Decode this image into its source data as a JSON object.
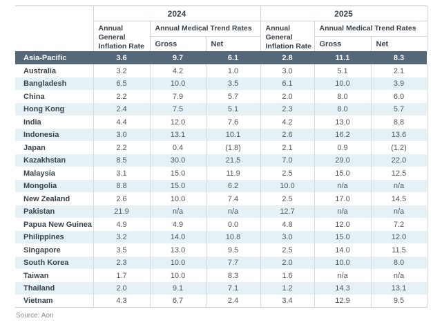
{
  "chart_data": {
    "type": "table",
    "header": {
      "year_2024": "2024",
      "year_2025": "2025",
      "inflation_label": "Annual General Inflation Rate",
      "medical_label": "Annual Medical Trend Rates",
      "gross_label": "Gross",
      "net_label": "Net"
    },
    "summary_row": {
      "name": "Asia-Pacific",
      "values": [
        "3.6",
        "9.7",
        "6.1",
        "2.8",
        "11.1",
        "8.3"
      ]
    },
    "rows": [
      {
        "name": "Australia",
        "values": [
          "3.2",
          "4.2",
          "1.0",
          "3.0",
          "5.1",
          "2.1"
        ]
      },
      {
        "name": "Bangladesh",
        "values": [
          "6.5",
          "10.0",
          "3.5",
          "6.1",
          "10.0",
          "3.9"
        ]
      },
      {
        "name": "China",
        "values": [
          "2.2",
          "7.9",
          "5.7",
          "2.0",
          "8.0",
          "6.0"
        ]
      },
      {
        "name": "Hong Kong",
        "values": [
          "2.4",
          "7.5",
          "5.1",
          "2.3",
          "8.0",
          "5.7"
        ]
      },
      {
        "name": "India",
        "values": [
          "4.4",
          "12.0",
          "7.6",
          "4.2",
          "13.0",
          "8.8"
        ]
      },
      {
        "name": "Indonesia",
        "values": [
          "3.0",
          "13.1",
          "10.1",
          "2.6",
          "16.2",
          "13.6"
        ]
      },
      {
        "name": "Japan",
        "values": [
          "2.2",
          "0.4",
          "(1.8)",
          "2.1",
          "0.9",
          "(1.2)"
        ]
      },
      {
        "name": "Kazakhstan",
        "values": [
          "8.5",
          "30.0",
          "21.5",
          "7.0",
          "29.0",
          "22.0"
        ]
      },
      {
        "name": "Malaysia",
        "values": [
          "3.1",
          "15.0",
          "11.9",
          "2.5",
          "15.0",
          "12.5"
        ]
      },
      {
        "name": "Mongolia",
        "values": [
          "8.8",
          "15.0",
          "6.2",
          "10.0",
          "n/a",
          "n/a"
        ]
      },
      {
        "name": "New Zealand",
        "values": [
          "2.6",
          "10.0",
          "7.4",
          "2.5",
          "17.0",
          "14.5"
        ]
      },
      {
        "name": "Pakistan",
        "values": [
          "21.9",
          "n/a",
          "n/a",
          "12.7",
          "n/a",
          "n/a"
        ]
      },
      {
        "name": "Papua New Guinea",
        "values": [
          "4.9",
          "4.9",
          "0.0",
          "4.8",
          "12.0",
          "7.2"
        ]
      },
      {
        "name": "Philippines",
        "values": [
          "3.2",
          "14.0",
          "10.8",
          "3.0",
          "15.0",
          "12.0"
        ]
      },
      {
        "name": "Singapore",
        "values": [
          "3.5",
          "13.0",
          "9.5",
          "2.5",
          "14.0",
          "11.5"
        ]
      },
      {
        "name": "South Korea",
        "values": [
          "2.3",
          "10.0",
          "7.7",
          "2.0",
          "10.0",
          "8.0"
        ]
      },
      {
        "name": "Taiwan",
        "values": [
          "1.7",
          "10.0",
          "8.3",
          "1.6",
          "n/a",
          "n/a"
        ]
      },
      {
        "name": "Thailand",
        "values": [
          "2.0",
          "9.1",
          "7.1",
          "1.2",
          "14.3",
          "13.1"
        ]
      },
      {
        "name": "Vietnam",
        "values": [
          "4.3",
          "6.7",
          "2.4",
          "3.4",
          "12.9",
          "9.5"
        ]
      }
    ]
  },
  "source": {
    "label": "Source: Aon"
  },
  "colors": {
    "summary_row_bg": "#54687a",
    "summary_row_text": "#ffffff",
    "band_row_bg": "#e6f1f6",
    "border": "#ccd3d7",
    "header_text": "#39434c",
    "value_text": "#4c565e",
    "source_text": "#848c92"
  }
}
